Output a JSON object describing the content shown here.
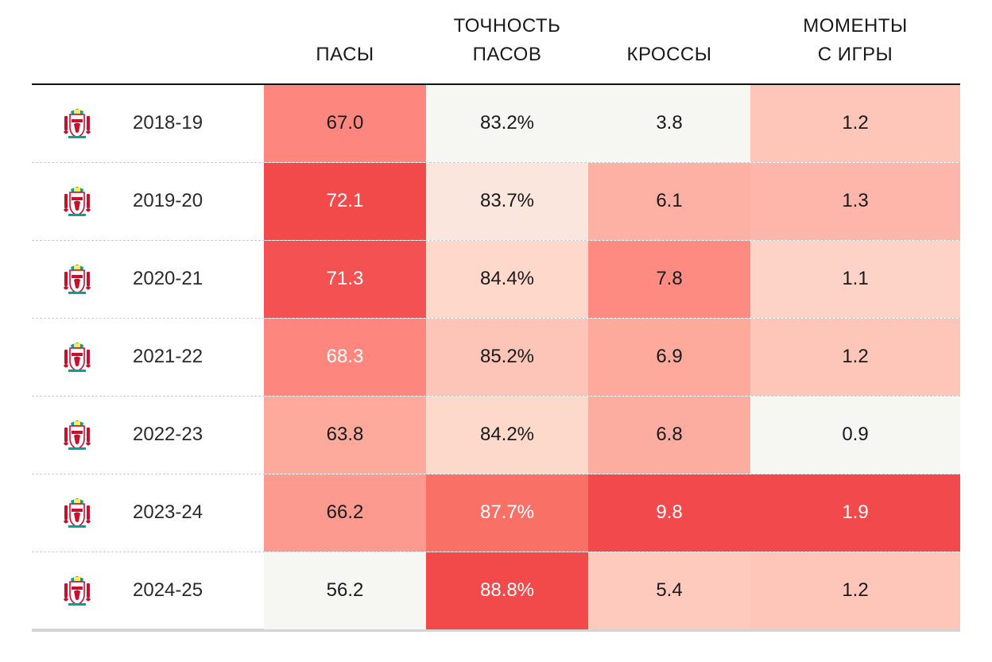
{
  "chart_data": {
    "type": "table",
    "columns": [
      "ПАСЫ",
      "ТОЧНОСТЬ\nПАСОВ",
      "КРОССЫ",
      "МОМЕНТЫ\nС ИГРЫ"
    ],
    "rows": [
      {
        "season": "2018-19",
        "values": [
          "67.0",
          "83.2%",
          "3.8",
          "1.2"
        ]
      },
      {
        "season": "2019-20",
        "values": [
          "72.1",
          "83.7%",
          "6.1",
          "1.3"
        ]
      },
      {
        "season": "2020-21",
        "values": [
          "71.3",
          "84.4%",
          "7.8",
          "1.1"
        ]
      },
      {
        "season": "2021-22",
        "values": [
          "68.3",
          "85.2%",
          "6.9",
          "1.2"
        ]
      },
      {
        "season": "2022-23",
        "values": [
          "63.8",
          "84.2%",
          "6.8",
          "0.9"
        ]
      },
      {
        "season": "2023-24",
        "values": [
          "66.2",
          "87.7%",
          "9.8",
          "1.9"
        ]
      },
      {
        "season": "2024-25",
        "values": [
          "56.2",
          "88.8%",
          "5.4",
          "1.2"
        ]
      }
    ],
    "cell_colors": [
      [
        "#fd877f",
        "#f6f6f3",
        "#f6f6f3",
        "#fec6b9"
      ],
      [
        "#f2494b",
        "#fbe6de",
        "#fdb1a5",
        "#fdb6a9"
      ],
      [
        "#f45252",
        "#fdd8cb",
        "#fe8b81",
        "#fdd3c7"
      ],
      [
        "#fd867f",
        "#fdc4b8",
        "#fdaa9d",
        "#fec6b9"
      ],
      [
        "#fdaa9c",
        "#fdd9cc",
        "#fdad9f",
        "#f6f6f3"
      ],
      [
        "#fd9a8f",
        "#f97067",
        "#f24a4c",
        "#f24a4c"
      ],
      [
        "#f6f6f3",
        "#f2494b",
        "#fecabd",
        "#fec6b9"
      ]
    ],
    "cell_text_colors": [
      [
        "#1a1a1a",
        "#1a1a1a",
        "#1a1a1a",
        "#1a1a1a"
      ],
      [
        "#ffffff",
        "#1a1a1a",
        "#1a1a1a",
        "#1a1a1a"
      ],
      [
        "#ffffff",
        "#1a1a1a",
        "#1a1a1a",
        "#1a1a1a"
      ],
      [
        "#ffffff",
        "#1a1a1a",
        "#1a1a1a",
        "#1a1a1a"
      ],
      [
        "#1a1a1a",
        "#1a1a1a",
        "#1a1a1a",
        "#1a1a1a"
      ],
      [
        "#1a1a1a",
        "#ffffff",
        "#ffffff",
        "#ffffff"
      ],
      [
        "#1a1a1a",
        "#ffffff",
        "#1a1a1a",
        "#1a1a1a"
      ]
    ],
    "icon": "liverpool-crest-icon",
    "colors": {
      "crest_red": "#c8102e",
      "crest_green": "#00a398",
      "crest_gold": "#f6eb61"
    }
  }
}
